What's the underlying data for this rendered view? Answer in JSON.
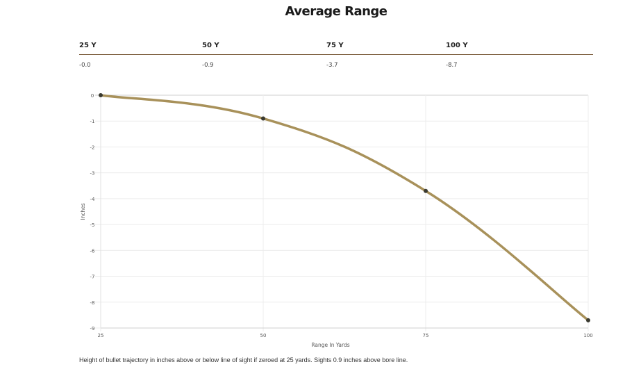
{
  "header": {
    "title": "Average Range"
  },
  "range_table": {
    "headers": [
      "25 Y",
      "50 Y",
      "75 Y",
      "100 Y"
    ],
    "values": [
      "-0.0",
      "-0.9",
      "-3.7",
      "-8.7"
    ]
  },
  "chart_data": {
    "type": "line",
    "x": [
      25,
      50,
      75,
      100
    ],
    "series": [
      {
        "values": [
          -0.0,
          -0.9,
          -3.7,
          -8.7
        ]
      }
    ],
    "xlabel": "Range In Yards",
    "ylabel": "Inches",
    "xlim": [
      25,
      100
    ],
    "ylim": [
      -9,
      0
    ],
    "xticks": [
      25,
      50,
      75,
      100
    ],
    "yticks": [
      0,
      -1,
      -2,
      -3,
      -4,
      -5,
      -6,
      -7,
      -8,
      -9
    ],
    "grid": true,
    "line_color": "#a8915a",
    "point_color": "#3a3a30"
  },
  "footnote": "Height of bullet trajectory in inches above or below line of sight if zeroed at 25 yards. Sights 0.9 inches above bore line."
}
